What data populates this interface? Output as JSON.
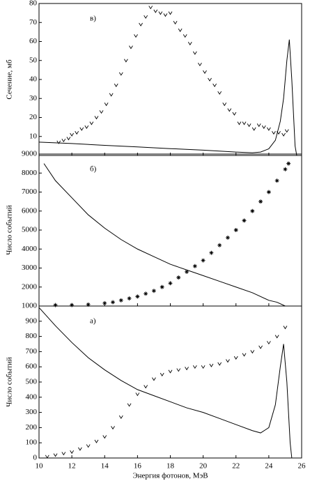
{
  "chart_data": [
    {
      "type": "scatter",
      "ylabel": "Сечение, мб",
      "annotation": "в)",
      "xlim": [
        10,
        26
      ],
      "xticks": [
        10,
        12,
        14,
        16,
        18,
        20,
        22,
        24,
        26
      ],
      "ylim": [
        0,
        80
      ],
      "yticks": [
        10,
        20,
        30,
        40,
        50,
        60,
        70,
        80
      ],
      "series": [
        {
          "marker": "v",
          "color": "#000000",
          "x": [
            11.2,
            11.5,
            11.8,
            12.0,
            12.3,
            12.6,
            12.9,
            13.2,
            13.5,
            13.8,
            14.1,
            14.4,
            14.7,
            15.0,
            15.3,
            15.6,
            15.9,
            16.2,
            16.5,
            16.8,
            17.1,
            17.4,
            17.7,
            18.0,
            18.3,
            18.6,
            18.9,
            19.2,
            19.5,
            19.8,
            20.1,
            20.4,
            20.7,
            21.0,
            21.3,
            21.6,
            21.9,
            22.2,
            22.5,
            22.8,
            23.1,
            23.4,
            23.7,
            24.0,
            24.3,
            24.6,
            24.9,
            25.1
          ],
          "values": [
            7,
            8,
            9,
            11,
            12,
            14,
            15,
            17,
            20,
            23,
            27,
            32,
            37,
            43,
            50,
            57,
            63,
            69,
            73,
            78,
            76,
            75,
            74,
            75,
            70,
            66,
            63,
            59,
            54,
            48,
            44,
            40,
            37,
            33,
            27,
            24,
            22,
            17,
            17,
            16,
            14,
            16,
            15,
            14,
            12,
            12,
            11,
            13
          ]
        },
        {
          "marker": "line",
          "color": "#000000",
          "x": [
            10,
            12,
            14,
            16,
            18,
            20,
            22,
            23,
            23.5,
            24,
            24.4,
            24.7,
            24.9,
            25.1,
            25.25,
            25.4,
            25.6,
            25.7
          ],
          "values": [
            7,
            6.3,
            5.3,
            4.5,
            3.6,
            2.8,
            1.8,
            1.4,
            1.8,
            3.5,
            8,
            18,
            30,
            50,
            61,
            40,
            5,
            0
          ]
        }
      ]
    },
    {
      "type": "scatter",
      "ylabel": "Число событий",
      "annotation": "б)",
      "xlim": [
        10,
        26
      ],
      "xticks": [
        10,
        12,
        14,
        16,
        18,
        20,
        22,
        24,
        26
      ],
      "ylim": [
        1000,
        9000
      ],
      "yticks": [
        1000,
        2000,
        3000,
        4000,
        5000,
        6000,
        7000,
        8000,
        9000
      ],
      "series": [
        {
          "marker": "*",
          "color": "#000000",
          "x": [
            11,
            12,
            13,
            14,
            14.5,
            15,
            15.5,
            16,
            16.5,
            17,
            17.5,
            18,
            18.5,
            19,
            19.5,
            20,
            20.5,
            21,
            21.5,
            22,
            22.5,
            23,
            23.5,
            24,
            24.5,
            25,
            25.2
          ],
          "values": [
            1050,
            1050,
            1080,
            1150,
            1200,
            1300,
            1400,
            1500,
            1650,
            1800,
            2000,
            2200,
            2500,
            2800,
            3100,
            3400,
            3800,
            4200,
            4600,
            5000,
            5500,
            6000,
            6500,
            7000,
            7600,
            8200,
            8500
          ]
        },
        {
          "marker": "line",
          "color": "#000000",
          "x": [
            10.3,
            11,
            12,
            13,
            14,
            15,
            16,
            17,
            18,
            19,
            20,
            21,
            22,
            23,
            24,
            24.5,
            25
          ],
          "values": [
            8500,
            7600,
            6700,
            5800,
            5100,
            4500,
            4000,
            3600,
            3200,
            2900,
            2600,
            2300,
            2000,
            1700,
            1300,
            1200,
            1000
          ]
        }
      ]
    },
    {
      "type": "scatter",
      "ylabel": "Число событий",
      "annotation": "а)",
      "xlabel": "Энергия фотонов, МэВ",
      "xlim": [
        10,
        26
      ],
      "xticks": [
        10,
        12,
        14,
        16,
        18,
        20,
        22,
        24,
        26
      ],
      "ylim": [
        0,
        1000
      ],
      "yticks": [
        0,
        100,
        200,
        300,
        400,
        500,
        600,
        700,
        800,
        900
      ],
      "series": [
        {
          "marker": "v",
          "color": "#000000",
          "x": [
            10.5,
            11,
            11.5,
            12,
            12.5,
            13,
            13.5,
            14,
            14.5,
            15,
            15.5,
            16,
            16.5,
            17,
            17.5,
            18,
            18.5,
            19,
            19.5,
            20,
            20.5,
            21,
            21.5,
            22,
            22.5,
            23,
            23.5,
            24,
            24.5,
            25
          ],
          "values": [
            10,
            20,
            30,
            40,
            60,
            80,
            110,
            140,
            200,
            270,
            350,
            420,
            470,
            520,
            550,
            570,
            580,
            590,
            600,
            600,
            610,
            620,
            640,
            660,
            680,
            700,
            730,
            760,
            800,
            860
          ]
        },
        {
          "marker": "line",
          "color": "#000000",
          "x": [
            10,
            11,
            12,
            13,
            14,
            15,
            16,
            17,
            18,
            19,
            20,
            21,
            22,
            23,
            23.5,
            24,
            24.4,
            24.7,
            24.9,
            25.1,
            25.3,
            25.4
          ],
          "values": [
            990,
            870,
            760,
            660,
            580,
            510,
            450,
            410,
            370,
            330,
            300,
            260,
            220,
            180,
            165,
            200,
            350,
            600,
            750,
            500,
            100,
            0
          ]
        }
      ]
    }
  ]
}
